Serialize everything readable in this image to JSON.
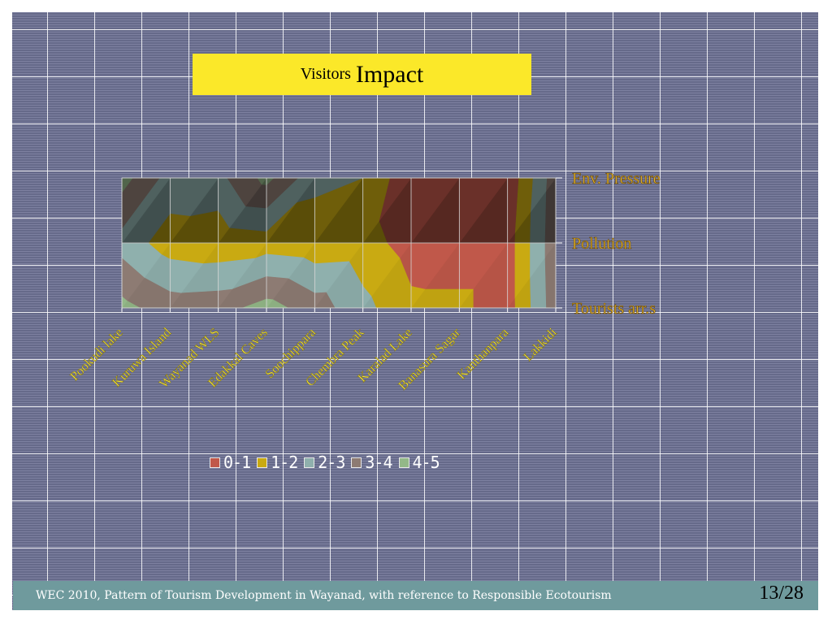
{
  "slide": {
    "title_small": "Visitors",
    "title_big": "Impact",
    "footer": "WEC 2010, Pattern of Tourism Development in Wayanad, with reference to Responsible Ecotourism",
    "page": "13/28"
  },
  "chart_data": {
    "type": "surface",
    "title": "",
    "categories": [
      "Pookudi lake",
      "Kuruwa Island",
      "Wayanad WLS",
      "Edakkal Caves",
      "Soochippara",
      "Chembra Peak",
      "Karalad Lake",
      "Banasura Sagar",
      "Kanthanpara",
      "Lakkidi"
    ],
    "series": [
      {
        "name": "Tourists arr.s",
        "values": [
          4.3,
          3.5,
          3.6,
          4.4,
          3.5,
          2.3,
          1.2,
          1.2,
          0.5,
          3.6
        ]
      },
      {
        "name": "Pollution",
        "values": [
          2.6,
          1.5,
          1.3,
          1.5,
          1.3,
          1.4,
          0.6,
          0.5,
          0.5,
          3.7
        ]
      },
      {
        "name": "Env. Pressure",
        "values": [
          4.4,
          2.6,
          2.7,
          4.3,
          2.3,
          2.0,
          0.2,
          0.2,
          0.2,
          3.6
        ]
      }
    ],
    "zlim": [
      0,
      5
    ],
    "bands": [
      {
        "label": "0-1",
        "color": "#c0584a"
      },
      {
        "label": "1-2",
        "color": "#c9aa12"
      },
      {
        "label": "2-3",
        "color": "#8fb0ad"
      },
      {
        "label": "3-4",
        "color": "#8d7b73"
      },
      {
        "label": "4-5",
        "color": "#93b888"
      }
    ]
  }
}
